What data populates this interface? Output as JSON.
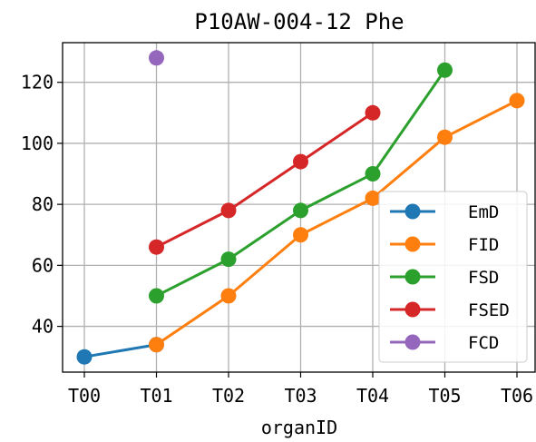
{
  "chart_data": {
    "type": "line",
    "title": "P10AW-004-12 Phe",
    "xlabel": "organID",
    "ylabel": "",
    "categories": [
      "T00",
      "T01",
      "T02",
      "T03",
      "T04",
      "T05",
      "T06"
    ],
    "ylim": [
      25,
      133
    ],
    "yticks": [
      40,
      60,
      80,
      100,
      120
    ],
    "grid": true,
    "legend_position": "lower-right",
    "series": [
      {
        "name": "EmD",
        "color": "#1f77b4",
        "values": [
          30,
          34,
          null,
          null,
          null,
          null,
          null
        ]
      },
      {
        "name": "FID",
        "color": "#ff7f0e",
        "values": [
          null,
          34,
          50,
          70,
          82,
          102,
          114
        ]
      },
      {
        "name": "FSD",
        "color": "#2ca02c",
        "values": [
          null,
          50,
          62,
          78,
          90,
          124,
          null
        ]
      },
      {
        "name": "FSED",
        "color": "#d62728",
        "values": [
          null,
          66,
          78,
          94,
          110,
          null,
          null
        ]
      },
      {
        "name": "FCD",
        "color": "#9467bd",
        "values": [
          null,
          128,
          null,
          null,
          null,
          null,
          null
        ]
      }
    ]
  }
}
